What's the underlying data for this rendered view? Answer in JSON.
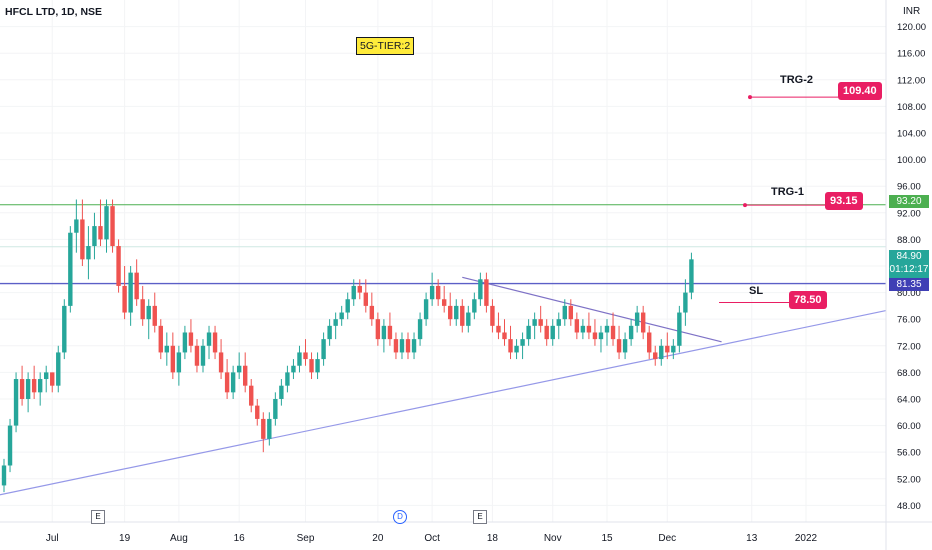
{
  "header": {
    "symbol": "HFCL LTD, 1D, NSE",
    "currency": "INR"
  },
  "annotations": {
    "tier_label": "5G-TIER:2",
    "trg2": {
      "label": "TRG-2",
      "value": "109.40"
    },
    "trg1": {
      "label": "TRG-1",
      "value": "93.15"
    },
    "sl": {
      "label": "SL",
      "value": "78.50"
    }
  },
  "price_axis": {
    "last_price": "84.90",
    "countdown": "01:12:17",
    "level_green": "93.20",
    "level_purple": "81.35"
  },
  "events": [
    "E",
    "D",
    "E"
  ],
  "colors": {
    "up": "#26a69a",
    "down": "#ef5350",
    "accent": "#e91e63",
    "trend": "#9598e8",
    "resistance": "#4caf50"
  },
  "chart_data": {
    "type": "candlestick",
    "ylim": [
      45.5,
      124
    ],
    "y_ticks": [
      "48.00",
      "52.00",
      "56.00",
      "60.00",
      "64.00",
      "68.00",
      "72.00",
      "76.00",
      "80.00",
      "84.00",
      "88.00",
      "92.00",
      "96.00",
      "100.00",
      "104.00",
      "108.00",
      "112.00",
      "116.00",
      "120.00"
    ],
    "x_ticks": [
      {
        "i": 8,
        "label": "Jul"
      },
      {
        "i": 20,
        "label": "19"
      },
      {
        "i": 29,
        "label": "Aug"
      },
      {
        "i": 39,
        "label": "16"
      },
      {
        "i": 50,
        "label": "Sep"
      },
      {
        "i": 62,
        "label": "20"
      },
      {
        "i": 71,
        "label": "Oct"
      },
      {
        "i": 81,
        "label": "18"
      },
      {
        "i": 91,
        "label": "Nov"
      },
      {
        "i": 100,
        "label": "15"
      },
      {
        "i": 110,
        "label": "Dec"
      },
      {
        "i": 124,
        "label": "13"
      },
      {
        "i": 133,
        "label": "2022"
      }
    ],
    "candles": [
      [
        51,
        55,
        50,
        54
      ],
      [
        54,
        61,
        53,
        60
      ],
      [
        60,
        68,
        59,
        67
      ],
      [
        67,
        69,
        63,
        64
      ],
      [
        64,
        68,
        62,
        67
      ],
      [
        67,
        69,
        64,
        65
      ],
      [
        65,
        68,
        63,
        67
      ],
      [
        67,
        69,
        65,
        68
      ],
      [
        68,
        68,
        65,
        66
      ],
      [
        66,
        72,
        65,
        71
      ],
      [
        71,
        79,
        70,
        78
      ],
      [
        78,
        90,
        77,
        89
      ],
      [
        89,
        94,
        86,
        91
      ],
      [
        91,
        94,
        84,
        85
      ],
      [
        85,
        90,
        82,
        87
      ],
      [
        87,
        92,
        85,
        90
      ],
      [
        90,
        94,
        87,
        88
      ],
      [
        88,
        94,
        86,
        93
      ],
      [
        93,
        94,
        86,
        87
      ],
      [
        87,
        88,
        80,
        81
      ],
      [
        81,
        84,
        76,
        77
      ],
      [
        77,
        84,
        75,
        83
      ],
      [
        83,
        85,
        78,
        79
      ],
      [
        79,
        81,
        75,
        76
      ],
      [
        76,
        79,
        73,
        78
      ],
      [
        78,
        80,
        74,
        75
      ],
      [
        75,
        76,
        70,
        71
      ],
      [
        71,
        74,
        69,
        72
      ],
      [
        72,
        74,
        67,
        68
      ],
      [
        68,
        72,
        66,
        71
      ],
      [
        71,
        75,
        70,
        74
      ],
      [
        74,
        76,
        71,
        72
      ],
      [
        72,
        73,
        68,
        69
      ],
      [
        69,
        73,
        68,
        72
      ],
      [
        72,
        75,
        70,
        74
      ],
      [
        74,
        75,
        70,
        71
      ],
      [
        71,
        73,
        67,
        68
      ],
      [
        68,
        70,
        64,
        65
      ],
      [
        65,
        69,
        64,
        68
      ],
      [
        68,
        71,
        67,
        69
      ],
      [
        69,
        71,
        65,
        66
      ],
      [
        66,
        67,
        62,
        63
      ],
      [
        63,
        64,
        60,
        61
      ],
      [
        61,
        62,
        56,
        58
      ],
      [
        58,
        62,
        57,
        61
      ],
      [
        61,
        65,
        60,
        64
      ],
      [
        64,
        67,
        63,
        66
      ],
      [
        66,
        69,
        65,
        68
      ],
      [
        68,
        70,
        67,
        69
      ],
      [
        69,
        72,
        68,
        71
      ],
      [
        71,
        73,
        69,
        70
      ],
      [
        70,
        71,
        67,
        68
      ],
      [
        68,
        71,
        67,
        70
      ],
      [
        70,
        74,
        69,
        73
      ],
      [
        73,
        76,
        72,
        75
      ],
      [
        75,
        77,
        73,
        76
      ],
      [
        76,
        78,
        75,
        77
      ],
      [
        77,
        80,
        76,
        79
      ],
      [
        79,
        82,
        78,
        81
      ],
      [
        81,
        82,
        79,
        80
      ],
      [
        80,
        82,
        77,
        78
      ],
      [
        78,
        80,
        75,
        76
      ],
      [
        76,
        77,
        72,
        73
      ],
      [
        73,
        76,
        71,
        75
      ],
      [
        75,
        77,
        72,
        73
      ],
      [
        73,
        74,
        70,
        71
      ],
      [
        71,
        74,
        70,
        73
      ],
      [
        73,
        74,
        70,
        71
      ],
      [
        71,
        74,
        70,
        73
      ],
      [
        73,
        77,
        72,
        76
      ],
      [
        76,
        80,
        75,
        79
      ],
      [
        79,
        83,
        78,
        81
      ],
      [
        81,
        82,
        78,
        79
      ],
      [
        79,
        81,
        77,
        78
      ],
      [
        78,
        80,
        75,
        76
      ],
      [
        76,
        79,
        75,
        78
      ],
      [
        78,
        79,
        74,
        75
      ],
      [
        75,
        78,
        74,
        77
      ],
      [
        77,
        80,
        76,
        79
      ],
      [
        79,
        83,
        78,
        82
      ],
      [
        82,
        83,
        77,
        78
      ],
      [
        78,
        79,
        74,
        75
      ],
      [
        75,
        77,
        73,
        74
      ],
      [
        74,
        76,
        72,
        73
      ],
      [
        73,
        75,
        70,
        71
      ],
      [
        71,
        73,
        70,
        72
      ],
      [
        72,
        74,
        70,
        73
      ],
      [
        73,
        76,
        72,
        75
      ],
      [
        75,
        77,
        73,
        76
      ],
      [
        76,
        78,
        74,
        75
      ],
      [
        75,
        76,
        72,
        73
      ],
      [
        73,
        76,
        72,
        75
      ],
      [
        75,
        77,
        73,
        76
      ],
      [
        76,
        79,
        75,
        78
      ],
      [
        78,
        79,
        75,
        76
      ],
      [
        76,
        77,
        73,
        74
      ],
      [
        74,
        76,
        73,
        75
      ],
      [
        75,
        77,
        73,
        74
      ],
      [
        74,
        76,
        72,
        73
      ],
      [
        73,
        75,
        71,
        74
      ],
      [
        74,
        76,
        72,
        75
      ],
      [
        75,
        77,
        72,
        73
      ],
      [
        73,
        75,
        70,
        71
      ],
      [
        71,
        74,
        70,
        73
      ],
      [
        73,
        76,
        72,
        75
      ],
      [
        75,
        78,
        74,
        77
      ],
      [
        77,
        78,
        73,
        74
      ],
      [
        74,
        75,
        70,
        71
      ],
      [
        71,
        72,
        69,
        70
      ],
      [
        70,
        73,
        69,
        72
      ],
      [
        72,
        74,
        70,
        71
      ],
      [
        71,
        73,
        70,
        72
      ],
      [
        72,
        78,
        71,
        77
      ],
      [
        77,
        82,
        75,
        80
      ],
      [
        80,
        86,
        79,
        85
      ]
    ]
  }
}
